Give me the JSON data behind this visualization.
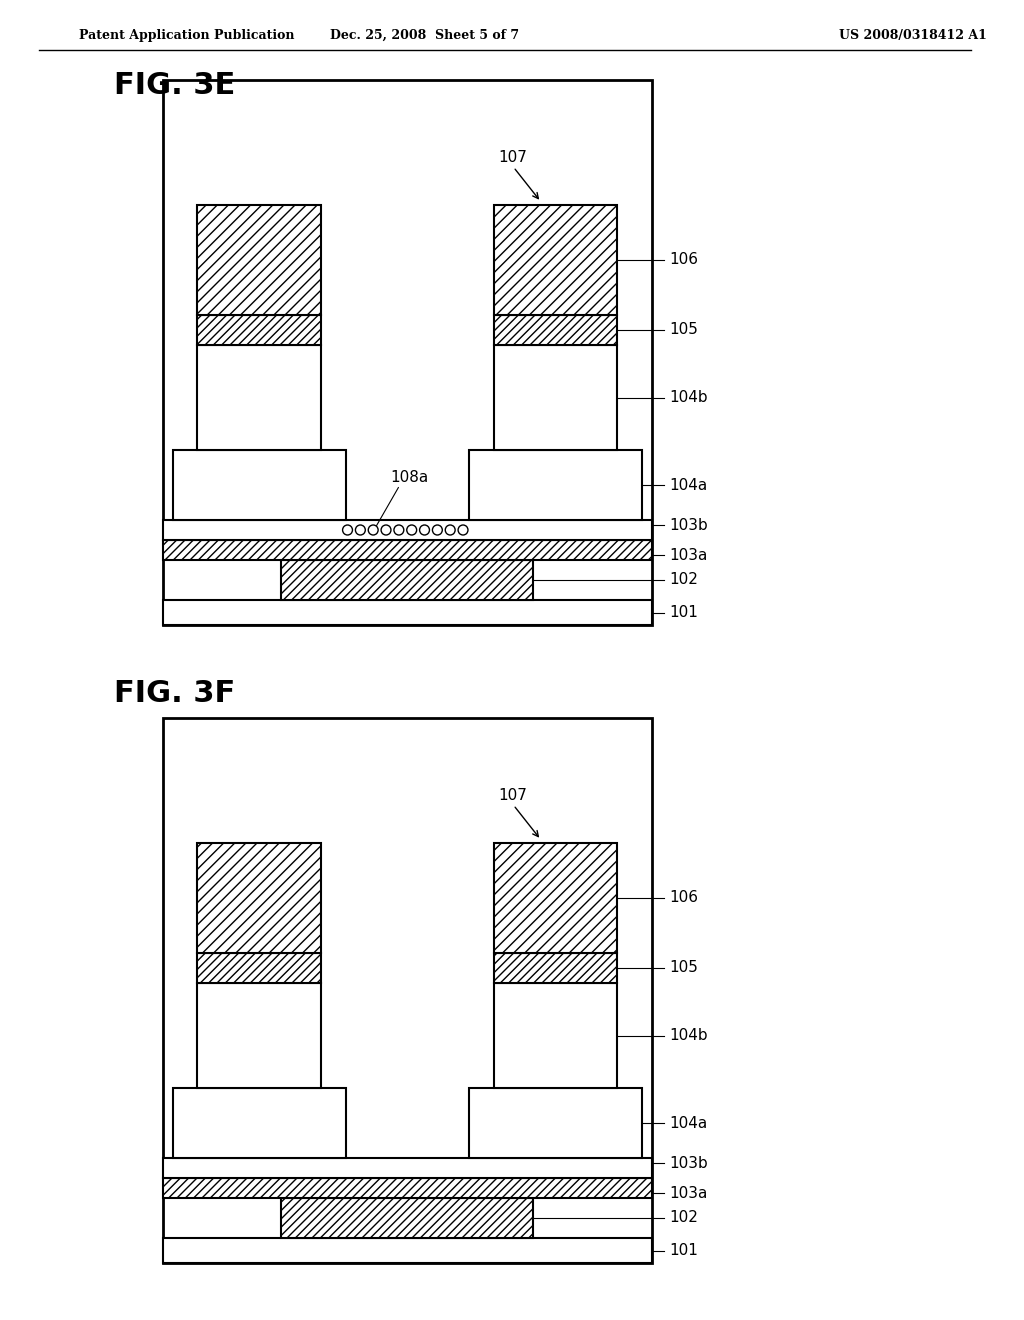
{
  "header_left": "Patent Application Publication",
  "header_center": "Dec. 25, 2008  Sheet 5 of 7",
  "header_right": "US 2008/0318412 A1",
  "fig_e_label": "FIG. 3E",
  "fig_f_label": "FIG. 3F",
  "background": "#ffffff",
  "line_color": "#000000",
  "label_106": "106",
  "label_105": "105",
  "label_104b": "104b",
  "label_104a": "104a",
  "label_103b": "103b",
  "label_103a": "103a",
  "label_102": "102",
  "label_101": "101",
  "label_107": "107",
  "label_108a": "108a"
}
